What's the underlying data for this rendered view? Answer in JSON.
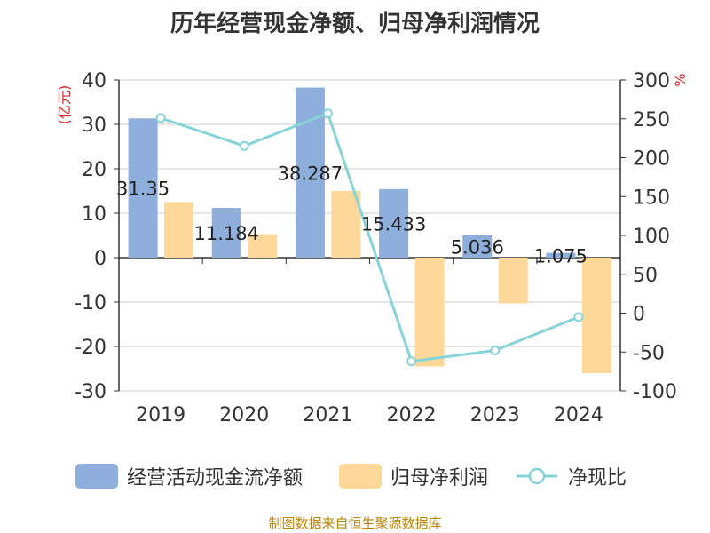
{
  "title": "历年经营现金净额、归母净利润情况",
  "source": "制图数据来自恒生聚源数据库",
  "colors": {
    "cashflow": "#8eaedc",
    "profit": "#fdd898",
    "ratio": "#86d4d8",
    "axis_label": "#d62728"
  },
  "chart_data": {
    "type": "bar",
    "categories": [
      "2019",
      "2020",
      "2021",
      "2022",
      "2023",
      "2024"
    ],
    "series": [
      {
        "name": "经营活动现金流净额",
        "type": "bar",
        "axis": "left",
        "values": [
          31.35,
          11.184,
          38.287,
          15.433,
          5.036,
          1.075
        ],
        "labels": [
          "31.35",
          "11.184",
          "38.287",
          "15.433",
          "5.036",
          "1.075"
        ]
      },
      {
        "name": "归母净利润",
        "type": "bar",
        "axis": "left",
        "values": [
          12.5,
          5.3,
          15.0,
          -24.5,
          -10.3,
          -26.0
        ]
      },
      {
        "name": "净现比",
        "type": "line",
        "axis": "right",
        "values": [
          251,
          215,
          257,
          -62,
          -48,
          -5
        ]
      }
    ],
    "left_axis": {
      "label": "(亿元)",
      "ylim": [
        -30,
        40
      ],
      "ticks": [
        "40",
        "30",
        "20",
        "10",
        "0",
        "-10",
        "-20",
        "-30"
      ]
    },
    "right_axis": {
      "label": "%",
      "ylim": [
        -100,
        300
      ],
      "ticks": [
        "300",
        "250",
        "200",
        "150",
        "100",
        "50",
        "0",
        "-50",
        "-100"
      ]
    },
    "legend": [
      "经营活动现金流净额",
      "归母净利润",
      "净现比"
    ]
  }
}
